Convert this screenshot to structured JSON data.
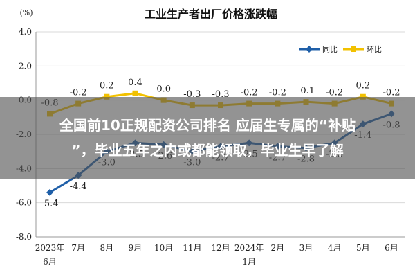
{
  "chart_data": {
    "type": "line",
    "title": "工业生产者出厂价格涨跌幅",
    "unit_label": "(%)",
    "ylim": [
      -8.0,
      4.0
    ],
    "yticks": [
      4.0,
      2.0,
      0.0,
      -2.0,
      -4.0,
      -6.0,
      -8.0
    ],
    "ytick_labels": [
      "4.0",
      "2.0",
      "0.0",
      "-2.0",
      "-4.0",
      "-6.0",
      "-8.0"
    ],
    "grid": true,
    "legend_position": "top-right",
    "categories": [
      {
        "line1": "2023年",
        "line2": "6月"
      },
      {
        "line1": "7月",
        "line2": ""
      },
      {
        "line1": "8月",
        "line2": ""
      },
      {
        "line1": "9月",
        "line2": ""
      },
      {
        "line1": "10月",
        "line2": ""
      },
      {
        "line1": "11月",
        "line2": ""
      },
      {
        "line1": "12月",
        "line2": ""
      },
      {
        "line1": "2024年",
        "line2": "1月"
      },
      {
        "line1": "2月",
        "line2": ""
      },
      {
        "line1": "3月",
        "line2": ""
      },
      {
        "line1": "4月",
        "line2": ""
      },
      {
        "line1": "5月",
        "line2": ""
      },
      {
        "line1": "6月",
        "line2": ""
      }
    ],
    "series": [
      {
        "name": "同比",
        "color": "#1f5fa8",
        "marker": "diamond",
        "values": [
          -5.4,
          -4.4,
          -3.0,
          -2.5,
          -2.6,
          -3.0,
          -2.7,
          -2.5,
          -2.7,
          -2.8,
          -2.5,
          -1.4,
          -0.8
        ],
        "labels": [
          "-5.4",
          "-4.4",
          "-3.0",
          "-2.5",
          "-2.6",
          "-3.0",
          "-2.7",
          "-2.5",
          "-2.7",
          "-2.8",
          "-2.5",
          "-1.4",
          "-0.8"
        ]
      },
      {
        "name": "环比",
        "color": "#f2c100",
        "marker": "square",
        "values": [
          -0.8,
          -0.2,
          0.2,
          0.4,
          0.0,
          -0.3,
          -0.3,
          -0.2,
          -0.2,
          -0.1,
          -0.2,
          0.2,
          -0.2
        ],
        "labels": [
          "-0.8",
          "-0.2",
          "0.2",
          "0.4",
          "0.0",
          "-0.3",
          "-0.3",
          "-0.2",
          "-0.2",
          "-0.1",
          "-0.2",
          "0.2",
          "-0.2"
        ]
      }
    ]
  },
  "overlay": {
    "line1": "全国前10正规配资公司排名 应届生专属的“补贴",
    "line2": "”，毕业五年之内或都能领取，毕业生早了解"
  }
}
